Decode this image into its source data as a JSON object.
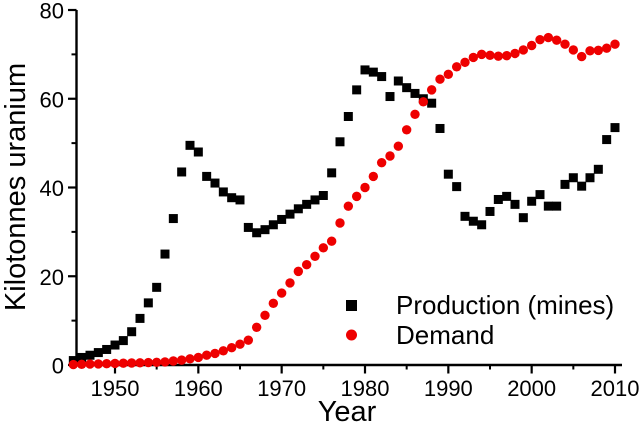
{
  "chart_data": {
    "type": "scatter",
    "title": "",
    "xlabel": "Year",
    "ylabel": "Kilotonnes uranium",
    "xlim": [
      1944,
      2011
    ],
    "ylim": [
      0,
      80
    ],
    "grid": false,
    "legend_position": "inside-bottom-right",
    "x_ticks_major": [
      1950,
      1960,
      1970,
      1980,
      1990,
      2000,
      2010
    ],
    "x_ticks_minor": [
      1955,
      1965,
      1975,
      1985,
      1995,
      2005
    ],
    "y_ticks_major": [
      0,
      20,
      40,
      60,
      80
    ],
    "y_ticks_minor": [
      10,
      30,
      50,
      70
    ],
    "x": [
      1945,
      1946,
      1947,
      1948,
      1949,
      1950,
      1951,
      1952,
      1953,
      1954,
      1955,
      1956,
      1957,
      1958,
      1959,
      1960,
      1961,
      1962,
      1963,
      1964,
      1965,
      1966,
      1967,
      1968,
      1969,
      1970,
      1971,
      1972,
      1973,
      1974,
      1975,
      1976,
      1977,
      1978,
      1979,
      1980,
      1981,
      1982,
      1983,
      1984,
      1985,
      1986,
      1987,
      1988,
      1989,
      1990,
      1991,
      1992,
      1993,
      1994,
      1995,
      1996,
      1997,
      1998,
      1999,
      2000,
      2001,
      2002,
      2003,
      2004,
      2005,
      2006,
      2007,
      2008,
      2009,
      2010
    ],
    "series": [
      {
        "name": "Production (mines)",
        "marker": "square",
        "color": "#000000",
        "values": [
          1,
          1.7,
          2.2,
          2.8,
          3.5,
          4.5,
          5.5,
          7.5,
          10.5,
          14,
          17.5,
          25,
          33,
          43.5,
          49.5,
          48,
          42.5,
          41,
          39,
          37.7,
          37.2,
          31,
          29.8,
          30.5,
          31.6,
          32.8,
          34,
          35.2,
          36.2,
          37.2,
          38.2,
          43.3,
          50.3,
          56,
          62,
          66.5,
          66,
          65,
          60.5,
          64,
          62.5,
          61.2,
          60,
          59,
          53.3,
          43,
          40.2,
          33.5,
          32.4,
          31.6,
          34.6,
          37.3,
          38,
          36.2,
          33.2,
          36.9,
          38.4,
          35.8,
          35.8,
          40.7,
          42.2,
          40.3,
          42.2,
          44.1,
          50.8,
          53.5
        ]
      },
      {
        "name": "Demand",
        "marker": "circle",
        "color": "#ee0000",
        "values": [
          0.1,
          0.15,
          0.2,
          0.25,
          0.3,
          0.35,
          0.4,
          0.45,
          0.5,
          0.55,
          0.6,
          0.7,
          0.9,
          1.1,
          1.4,
          1.7,
          2.2,
          2.6,
          3.2,
          3.9,
          4.7,
          5.6,
          8.5,
          11.2,
          13.9,
          16.2,
          18.5,
          21.1,
          22.6,
          24.5,
          26.4,
          27.9,
          32,
          35.8,
          38,
          40,
          42.5,
          45.6,
          47.1,
          49.3,
          53,
          56.5,
          59.3,
          62,
          64.4,
          65.5,
          67.2,
          68.2,
          69.3,
          70,
          69.8,
          69.6,
          69.7,
          70.2,
          71,
          72,
          73.3,
          73.8,
          73.2,
          72.3,
          71,
          69.5,
          70.8,
          70.9,
          71.4,
          72.3
        ]
      }
    ]
  }
}
